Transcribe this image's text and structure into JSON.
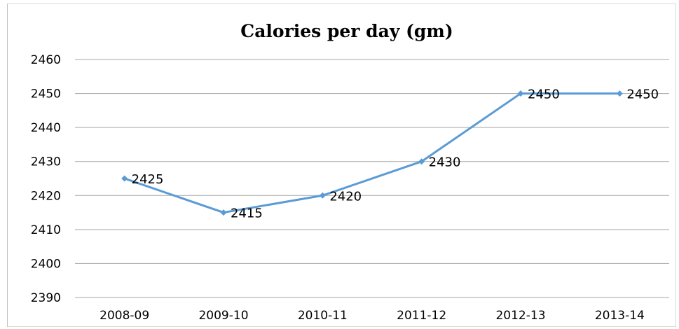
{
  "chart_data": {
    "type": "line",
    "title": "Calories per day (gm)",
    "xlabel": "",
    "ylabel": "",
    "categories": [
      "2008-09",
      "2009-10",
      "2010-11",
      "2011-12",
      "2012-13",
      "2013-14"
    ],
    "series": [
      {
        "values": [
          2425,
          2415,
          2420,
          2430,
          2450,
          2450
        ]
      }
    ],
    "data_labels": [
      "2425",
      "2415",
      "2420",
      "2430",
      "2450",
      "2450"
    ],
    "ylim": [
      2390,
      2460
    ],
    "yticks": [
      2390,
      2400,
      2410,
      2420,
      2430,
      2440,
      2450,
      2460
    ],
    "grid": true,
    "legend": "none",
    "colors": {
      "line": "#5b9bd5",
      "grid": "#a6a6a6"
    }
  }
}
